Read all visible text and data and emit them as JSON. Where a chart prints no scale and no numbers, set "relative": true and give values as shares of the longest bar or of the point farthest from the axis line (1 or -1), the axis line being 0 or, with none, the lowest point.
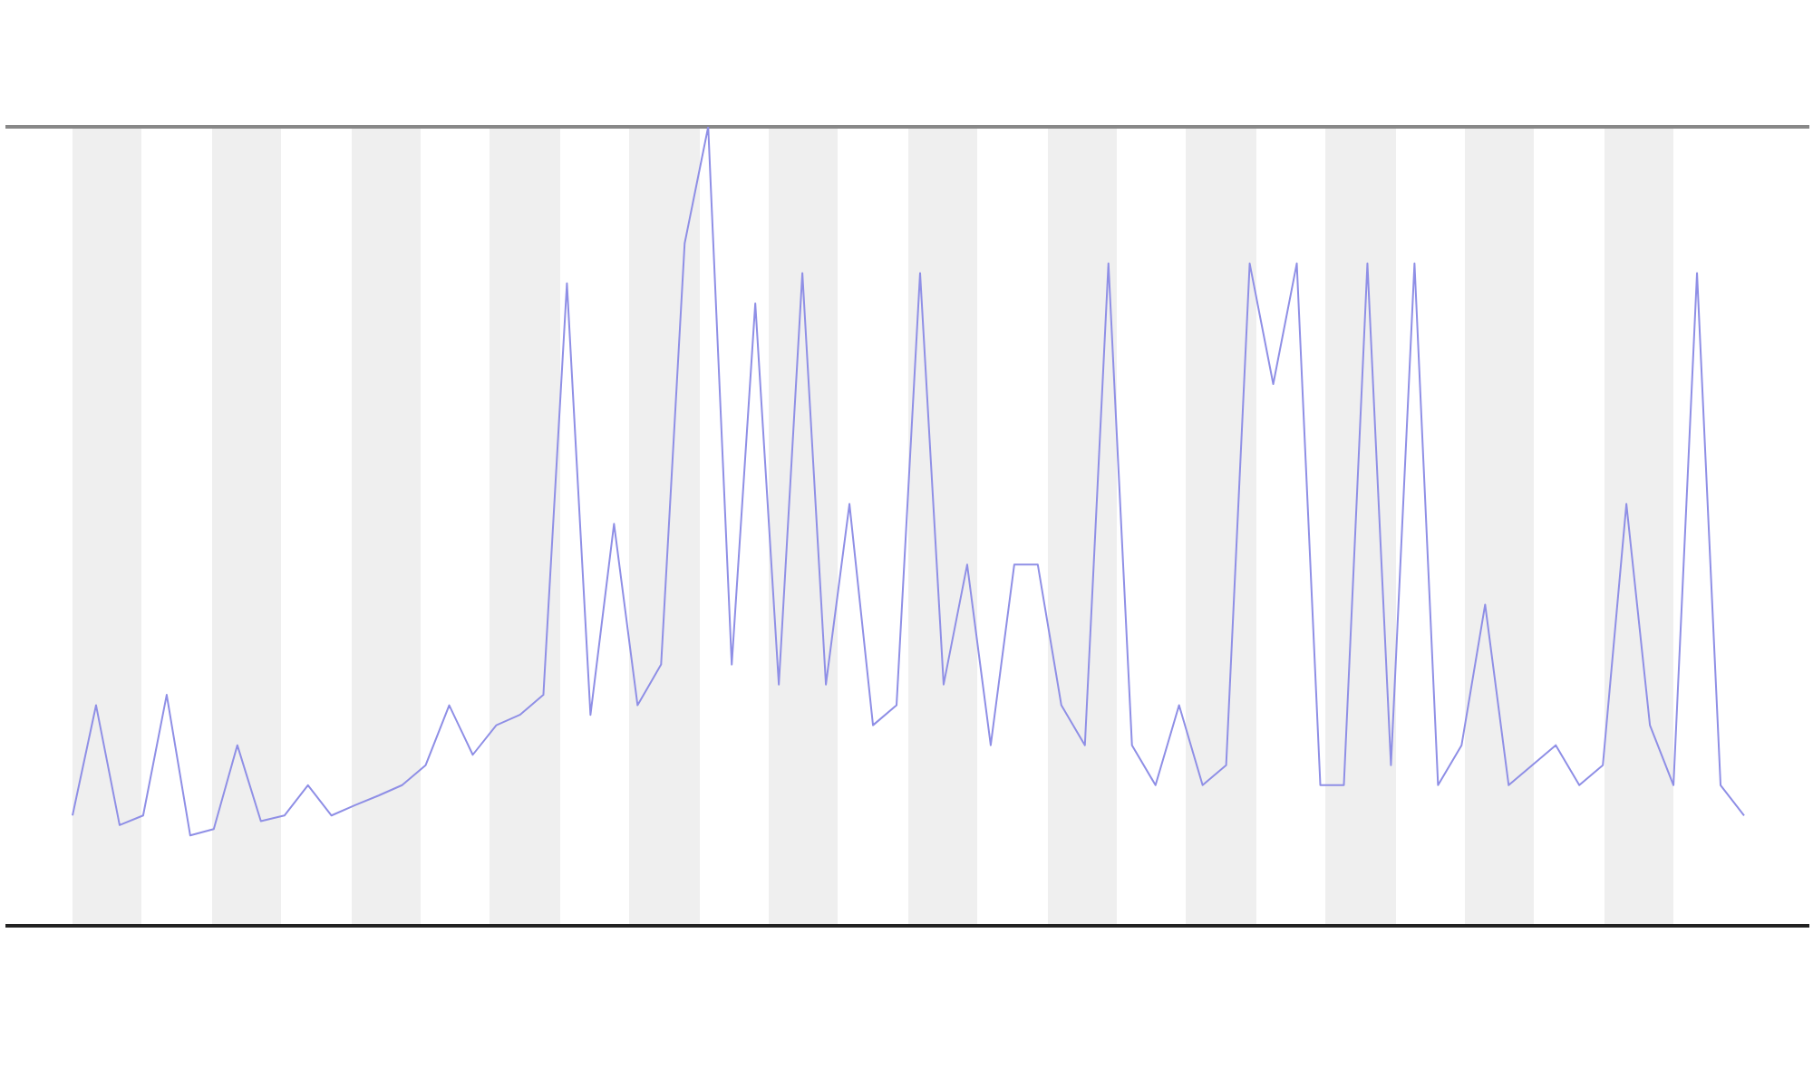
{
  "chart_data": {
    "type": "line",
    "relative": true,
    "tick_labels": false,
    "marker": "none",
    "categories": [
      null,
      null,
      null,
      null,
      null,
      null,
      null,
      null,
      null,
      null,
      null,
      null,
      null,
      null,
      null,
      null,
      null,
      null,
      null,
      null,
      null,
      null,
      null,
      null,
      null,
      null,
      null,
      null,
      null,
      null,
      null,
      null,
      null,
      null,
      null,
      null,
      null,
      null,
      null,
      null,
      null,
      null,
      null,
      null,
      null,
      null,
      null,
      null,
      null,
      null,
      null,
      null,
      null,
      null,
      null,
      null,
      null,
      null,
      null,
      null,
      null,
      null,
      null,
      null,
      null,
      null,
      null,
      null,
      null,
      null,
      null,
      null
    ],
    "series": [
      {
        "color": "#8f8fe6",
        "values": [
          0.138,
          0.276,
          0.126,
          0.138,
          0.289,
          0.113,
          0.121,
          0.226,
          0.131,
          0.138,
          0.176,
          0.138,
          0.151,
          0.163,
          0.176,
          0.201,
          0.276,
          0.214,
          0.251,
          0.264,
          0.289,
          0.804,
          0.264,
          0.503,
          0.276,
          0.327,
          0.854,
          1,
          0.327,
          0.779,
          0.302,
          0.817,
          0.302,
          0.528,
          0.251,
          0.276,
          0.817,
          0.302,
          0.452,
          0.226,
          0.452,
          0.452,
          0.276,
          0.226,
          0.829,
          0.226,
          0.176,
          0.276,
          0.176,
          0.201,
          0.829,
          0.678,
          0.829,
          0.176,
          0.176,
          0.829,
          0.201,
          0.829,
          0.176,
          0.226,
          0.402,
          0.176,
          0.201,
          0.226,
          0.176,
          0.201,
          0.528,
          0.251,
          0.176,
          0.817,
          0.176,
          0.138
        ]
      }
    ]
  }
}
